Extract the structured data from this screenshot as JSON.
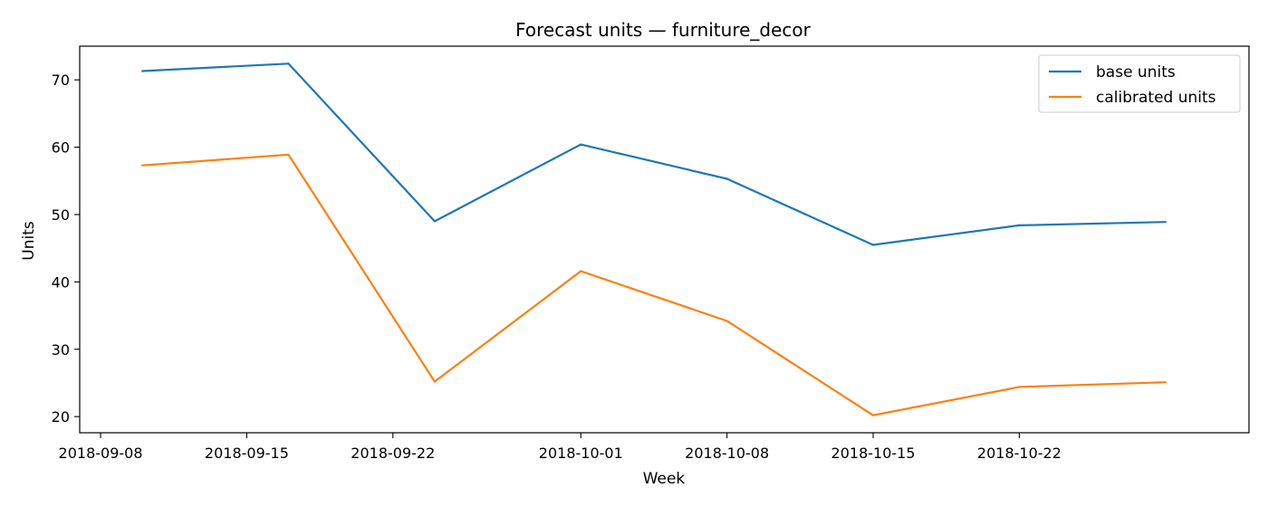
{
  "chart_data": {
    "type": "line",
    "title": "Forecast units — furniture_decor",
    "xlabel": "Week",
    "ylabel": "Units",
    "x": [
      "2018-09-10",
      "2018-09-17",
      "2018-09-24",
      "2018-10-01",
      "2018-10-08",
      "2018-10-15",
      "2018-10-22",
      "2018-10-29"
    ],
    "series": [
      {
        "name": "base units",
        "color": "#1f77b4",
        "values": [
          71.3,
          72.4,
          49.0,
          60.4,
          55.3,
          45.5,
          48.4,
          48.9
        ]
      },
      {
        "name": "calibrated units",
        "color": "#ff7f0e",
        "values": [
          57.3,
          58.9,
          25.2,
          41.6,
          34.2,
          20.2,
          24.4,
          25.1
        ]
      }
    ],
    "x_ticks": [
      "2018-09-08",
      "2018-09-15",
      "2018-09-22",
      "2018-10-01",
      "2018-10-08",
      "2018-10-15",
      "2018-10-22"
    ],
    "y_ticks": [
      20,
      30,
      40,
      50,
      60,
      70
    ],
    "xlim": [
      "2018-09-07",
      "2018-11-02"
    ],
    "ylim": [
      17.6,
      75.0
    ],
    "grid": false,
    "legend_position": "top-right"
  }
}
